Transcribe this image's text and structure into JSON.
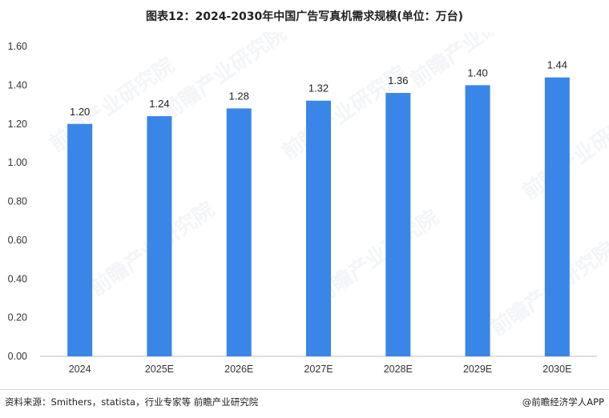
{
  "title": "图表12：2024-2030年中国广告写真机需求规模(单位：万台)",
  "footer": {
    "source": "资料来源：Smithers，statista，行业专家等 前瞻产业研究院",
    "brand": "@前瞻经济学人APP"
  },
  "watermark": "前瞻产业研究院",
  "colors": {
    "bar": "#3a86e8",
    "axis": "#bfbfbf",
    "text": "#333333"
  },
  "chart_data": {
    "type": "bar",
    "categories": [
      "2024",
      "2025E",
      "2026E",
      "2027E",
      "2028E",
      "2029E",
      "2030E"
    ],
    "values": [
      1.2,
      1.24,
      1.28,
      1.32,
      1.36,
      1.4,
      1.44
    ],
    "value_labels": [
      "1.20",
      "1.24",
      "1.28",
      "1.32",
      "1.36",
      "1.40",
      "1.44"
    ],
    "yticks": [
      "0.00",
      "0.20",
      "0.40",
      "0.60",
      "0.80",
      "1.00",
      "1.20",
      "1.40",
      "1.60"
    ],
    "ylim": [
      0,
      1.6
    ],
    "grid": false,
    "legend": "none"
  }
}
